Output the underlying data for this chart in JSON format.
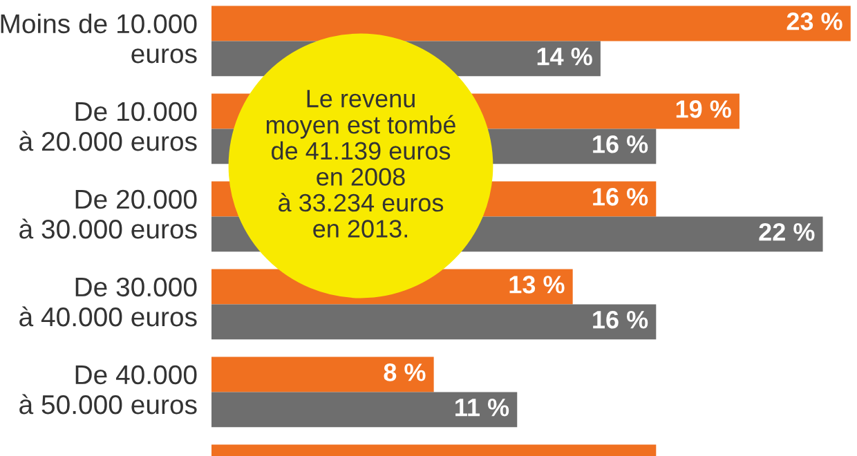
{
  "chart_data": {
    "type": "bar",
    "orientation": "horizontal",
    "categories": [
      "Moins de 10.000\neuros",
      "De 10.000\nà 20.000 euros",
      "De 20.000\nà 30.000 euros",
      "De 30.000\nà 40.000 euros",
      "De 40.000\nà 50.000 euros",
      null
    ],
    "series": [
      {
        "color": "#f07020",
        "values": [
          23,
          19,
          16,
          13,
          8,
          16
        ],
        "value_labels": [
          "23 %",
          "19 %",
          "16 %",
          "13 %",
          "8 %",
          null
        ]
      },
      {
        "color": "#6e6e6e",
        "values": [
          14,
          16,
          22,
          16,
          11,
          null
        ],
        "value_labels": [
          "14 %",
          "16 %",
          "22 %",
          "16 %",
          "11 %",
          null
        ]
      }
    ],
    "annotations": [
      "Le revenu\nmoyen est tombé\nde 41.139 euros\nen 2008\nà 33.234 euros\nen 2013."
    ],
    "legend": false
  }
}
